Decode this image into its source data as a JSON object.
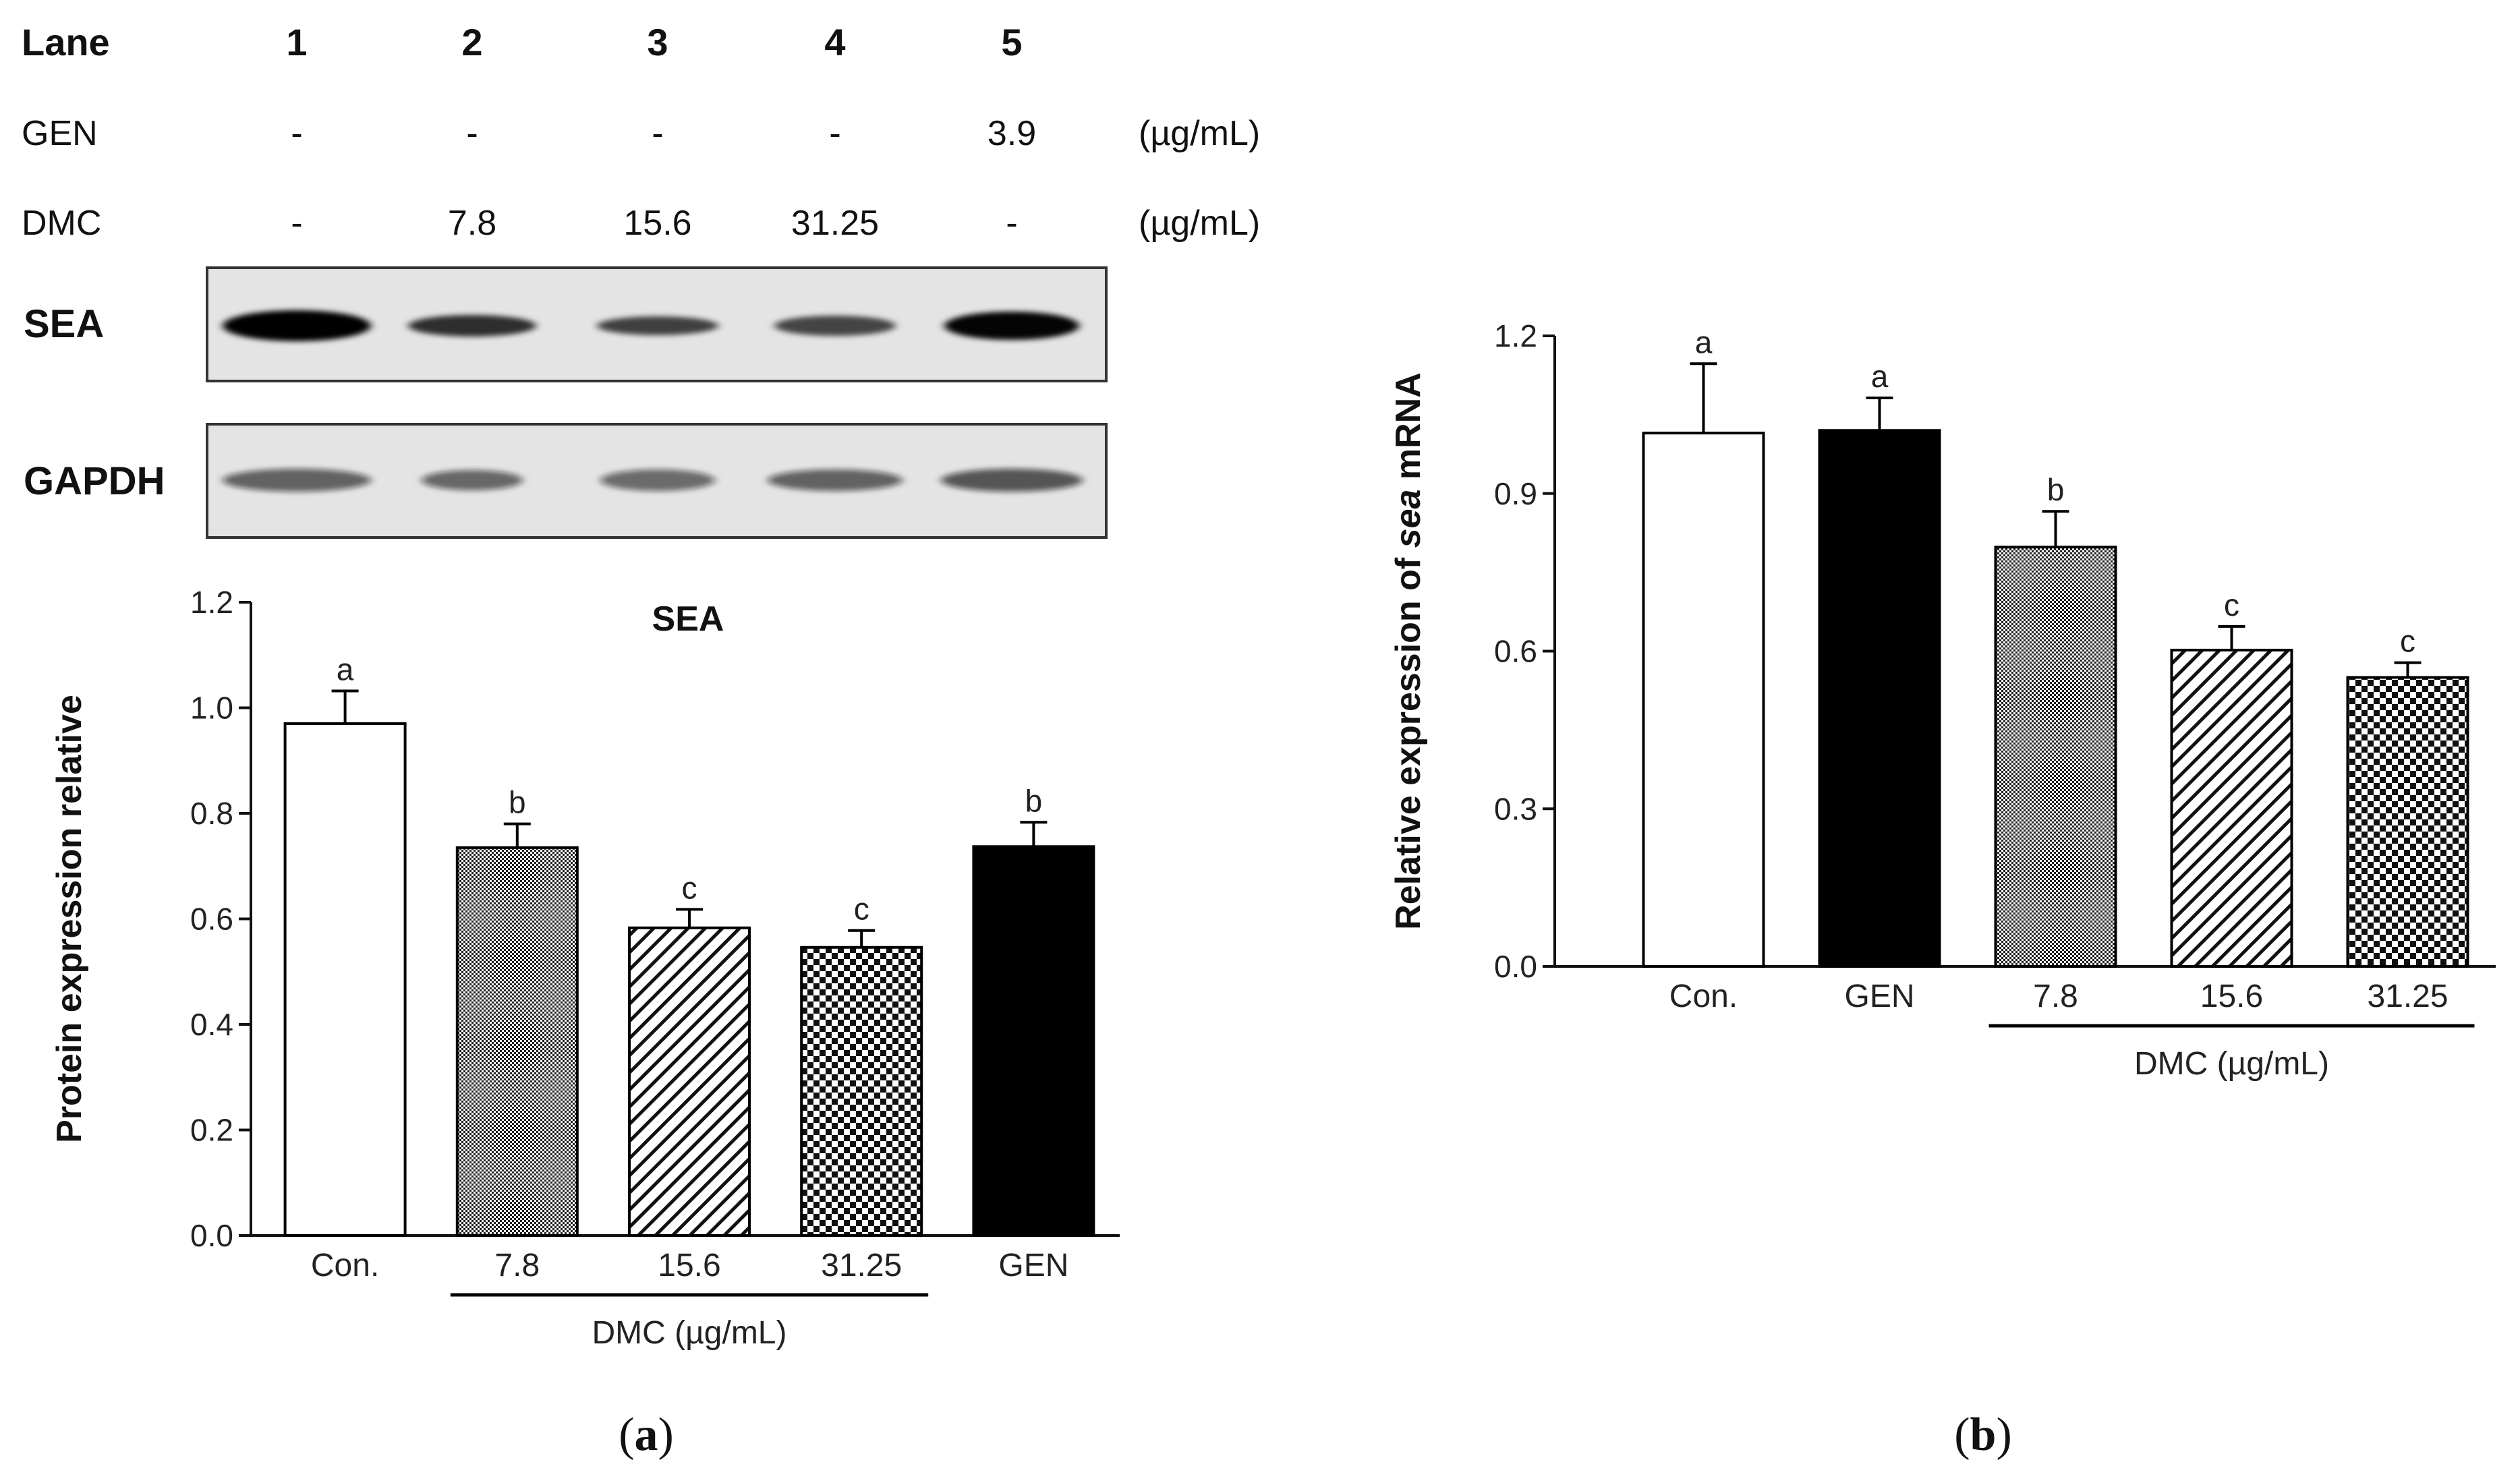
{
  "lanes_table": {
    "rows": [
      {
        "label": "Lane",
        "values": [
          "1",
          "2",
          "3",
          "4",
          "5"
        ],
        "unit": ""
      },
      {
        "label": "GEN",
        "values": [
          "-",
          "-",
          "-",
          "-",
          "3.9"
        ],
        "unit": "(µg/mL)"
      },
      {
        "label": "DMC",
        "values": [
          "-",
          "7.8",
          "15.6",
          "31.25",
          "-"
        ],
        "unit": "(µg/mL)"
      }
    ]
  },
  "blots": [
    {
      "label": "SEA"
    },
    {
      "label": "GAPDH"
    }
  ],
  "panel_labels": {
    "a": {
      "open": "(",
      "letter": "a",
      "close": ")"
    },
    "b": {
      "open": "(",
      "letter": "b",
      "close": ")"
    }
  },
  "chart_data": [
    {
      "type": "bar",
      "title": "SEA",
      "ylabel": "Protein expression relative",
      "ylim": [
        0,
        1.2
      ],
      "yticks": [
        "0.0",
        "0.2",
        "0.4",
        "0.6",
        "0.8",
        "1.0",
        "1.2"
      ],
      "categories": [
        "Con.",
        "7.8",
        "15.6",
        "31.25",
        "GEN"
      ],
      "values": [
        0.97,
        0.735,
        0.583,
        0.546,
        0.737
      ],
      "errors": [
        0.062,
        0.045,
        0.035,
        0.032,
        0.046
      ],
      "significance": [
        "a",
        "b",
        "c",
        "c",
        "b"
      ],
      "fills": [
        "white",
        "fine-grid",
        "diagonal",
        "checker",
        "black"
      ],
      "group_label": "DMC (µg/mL)",
      "group_span": [
        1,
        3
      ]
    },
    {
      "type": "bar",
      "title": "",
      "ylabel": {
        "before": "Relative expression of ",
        "italic": "sea",
        "after": " mRNA"
      },
      "ylim": [
        0,
        1.2
      ],
      "yticks": [
        "0.0",
        "0.3",
        "0.6",
        "0.9",
        "1.2"
      ],
      "categories": [
        "Con.",
        "GEN",
        "7.8",
        "15.6",
        "31.25"
      ],
      "values": [
        1.015,
        1.02,
        0.798,
        0.602,
        0.55
      ],
      "errors": [
        0.132,
        0.062,
        0.068,
        0.045,
        0.028
      ],
      "significance": [
        "a",
        "a",
        "b",
        "c",
        "c"
      ],
      "fills": [
        "white",
        "black",
        "fine-grid",
        "diagonal",
        "checker"
      ],
      "group_label": "DMC (µg/mL)",
      "group_span": [
        2,
        4
      ]
    }
  ]
}
